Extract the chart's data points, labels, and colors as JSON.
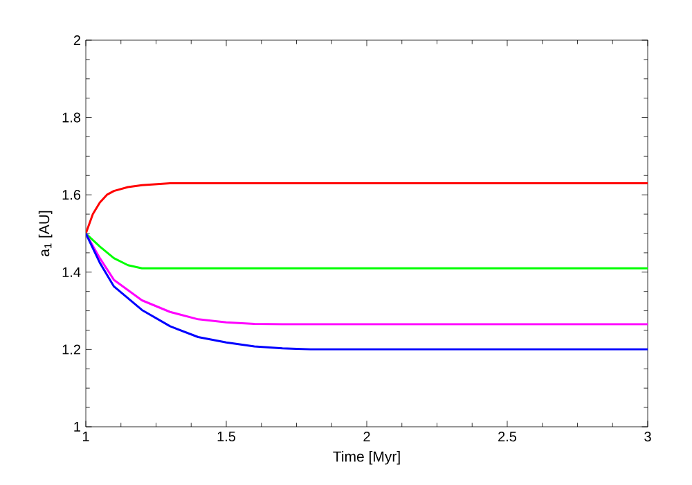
{
  "chart_data": {
    "type": "line",
    "xlabel": "Time [Myr]",
    "ylabel": "a$_{1}$ [AU]",
    "xlim": [
      1,
      3
    ],
    "ylim": [
      1,
      2
    ],
    "xticks": [
      1,
      1.5,
      2,
      2.5,
      3
    ],
    "yticks": [
      1,
      1.2,
      1.4,
      1.6,
      1.8,
      2
    ],
    "grid": false,
    "marker": "none",
    "line_style": "solid",
    "series": [
      {
        "color": "#ff0000",
        "x": [
          1,
          1.025,
          1.05,
          1.075,
          1.1,
          1.15,
          1.2,
          1.3,
          1.5,
          2,
          2.5,
          3
        ],
        "values": [
          1.5,
          1.55,
          1.58,
          1.6,
          1.61,
          1.62,
          1.625,
          1.63,
          1.63,
          1.63,
          1.63,
          1.63
        ]
      },
      {
        "color": "#00ff00",
        "x": [
          1,
          1.05,
          1.1,
          1.15,
          1.2,
          1.5,
          2,
          2.5,
          3
        ],
        "values": [
          1.5,
          1.466,
          1.436,
          1.418,
          1.41,
          1.41,
          1.41,
          1.41,
          1.41
        ]
      },
      {
        "color": "#ff00ff",
        "x": [
          1,
          1.05,
          1.1,
          1.2,
          1.3,
          1.4,
          1.5,
          1.6,
          1.7,
          2,
          2.5,
          3
        ],
        "values": [
          1.5,
          1.436,
          1.38,
          1.327,
          1.297,
          1.278,
          1.27,
          1.266,
          1.265,
          1.265,
          1.265,
          1.265
        ]
      },
      {
        "color": "#0000ff",
        "x": [
          1,
          1.05,
          1.1,
          1.2,
          1.3,
          1.4,
          1.5,
          1.6,
          1.7,
          1.8,
          1.9,
          2.5,
          3
        ],
        "values": [
          1.5,
          1.424,
          1.363,
          1.302,
          1.26,
          1.232,
          1.218,
          1.208,
          1.203,
          1.2,
          1.2,
          1.2,
          1.2
        ]
      }
    ]
  }
}
